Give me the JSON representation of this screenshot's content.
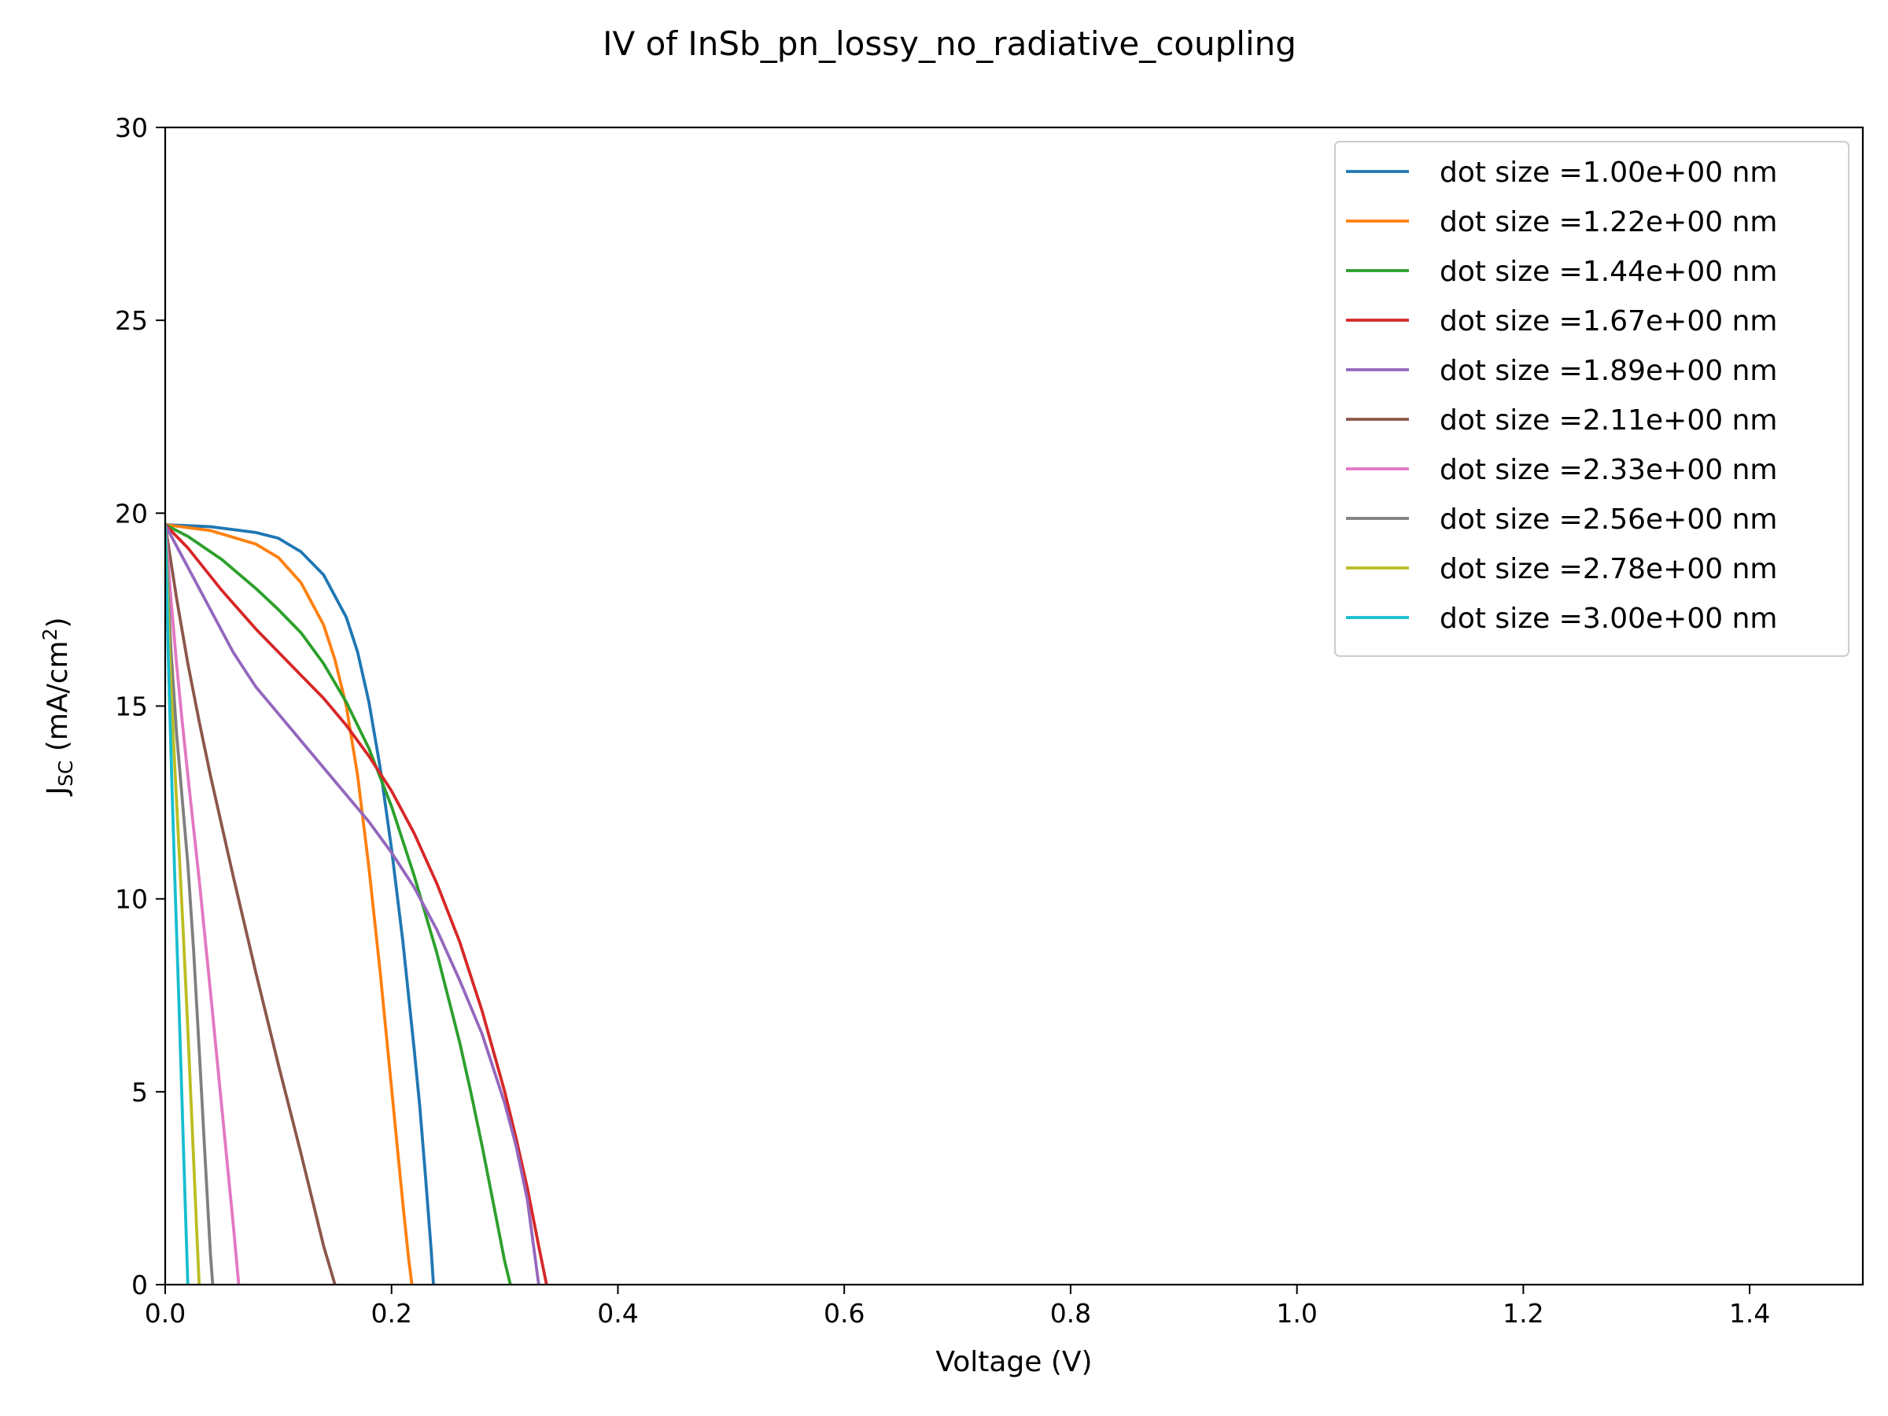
{
  "chart_data": {
    "type": "line",
    "title": "IV of InSb_pn_lossy_no_radiative_coupling",
    "xlabel": "Voltage (V)",
    "ylabel": {
      "main": "J",
      "sub": "SC",
      "unit_pre": " (mA/cm",
      "unit_sup": "2",
      "unit_post": ")"
    },
    "xlim": [
      0,
      1.5
    ],
    "ylim": [
      0,
      30
    ],
    "xticks": [
      0.0,
      0.2,
      0.4,
      0.6,
      0.8,
      1.0,
      1.2,
      1.4
    ],
    "xtick_labels": [
      "0.0",
      "0.2",
      "0.4",
      "0.6",
      "0.8",
      "1.0",
      "1.2",
      "1.4"
    ],
    "yticks": [
      0,
      5,
      10,
      15,
      20,
      25,
      30
    ],
    "ytick_labels": [
      "0",
      "5",
      "10",
      "15",
      "20",
      "25",
      "30"
    ],
    "grid": false,
    "legend_position": "top-right",
    "series": [
      {
        "name": "dot size =1.00e+00 nm",
        "color": "#1f77b4",
        "x": [
          0,
          0.04,
          0.08,
          0.1,
          0.12,
          0.14,
          0.16,
          0.17,
          0.18,
          0.19,
          0.2,
          0.21,
          0.22,
          0.225,
          0.23,
          0.235,
          0.237
        ],
        "y": [
          19.7,
          19.65,
          19.5,
          19.35,
          19.0,
          18.4,
          17.3,
          16.4,
          15.1,
          13.4,
          11.3,
          8.9,
          6.1,
          4.6,
          2.8,
          0.9,
          0
        ]
      },
      {
        "name": "dot size =1.22e+00 nm",
        "color": "#ff7f0e",
        "x": [
          0,
          0.04,
          0.08,
          0.1,
          0.12,
          0.14,
          0.15,
          0.16,
          0.17,
          0.18,
          0.19,
          0.2,
          0.205,
          0.21,
          0.215,
          0.218
        ],
        "y": [
          19.7,
          19.55,
          19.2,
          18.85,
          18.2,
          17.1,
          16.2,
          15.0,
          13.2,
          10.8,
          8.1,
          5.1,
          3.6,
          2.1,
          0.7,
          0
        ]
      },
      {
        "name": "dot size =1.44e+00 nm",
        "color": "#2ca02c",
        "x": [
          0,
          0.02,
          0.05,
          0.08,
          0.1,
          0.12,
          0.14,
          0.16,
          0.18,
          0.2,
          0.22,
          0.24,
          0.26,
          0.27,
          0.28,
          0.29,
          0.3,
          0.305
        ],
        "y": [
          19.7,
          19.4,
          18.8,
          18.05,
          17.5,
          16.9,
          16.1,
          15.1,
          13.9,
          12.4,
          10.6,
          8.6,
          6.3,
          5.0,
          3.6,
          2.1,
          0.6,
          0
        ]
      },
      {
        "name": "dot size =1.67e+00 nm",
        "color": "#d62728",
        "x": [
          0,
          0.02,
          0.05,
          0.08,
          0.1,
          0.12,
          0.14,
          0.16,
          0.18,
          0.2,
          0.22,
          0.24,
          0.26,
          0.28,
          0.3,
          0.31,
          0.32,
          0.33,
          0.337
        ],
        "y": [
          19.7,
          19.1,
          18.0,
          17.0,
          16.4,
          15.8,
          15.2,
          14.5,
          13.7,
          12.8,
          11.7,
          10.4,
          8.9,
          7.1,
          5.0,
          3.8,
          2.5,
          1.0,
          0
        ]
      },
      {
        "name": "dot size =1.89e+00 nm",
        "color": "#9467bd",
        "x": [
          0,
          0.02,
          0.04,
          0.06,
          0.08,
          0.1,
          0.12,
          0.14,
          0.16,
          0.18,
          0.2,
          0.22,
          0.24,
          0.26,
          0.28,
          0.3,
          0.31,
          0.32,
          0.33
        ],
        "y": [
          19.7,
          18.6,
          17.5,
          16.4,
          15.5,
          14.8,
          14.1,
          13.4,
          12.7,
          12.0,
          11.2,
          10.3,
          9.2,
          7.9,
          6.5,
          4.7,
          3.6,
          2.2,
          0
        ]
      },
      {
        "name": "dot size =2.11e+00 nm",
        "color": "#8c564b",
        "x": [
          0,
          0.01,
          0.02,
          0.03,
          0.04,
          0.06,
          0.08,
          0.1,
          0.12,
          0.14,
          0.15
        ],
        "y": [
          19.7,
          17.8,
          16.1,
          14.6,
          13.2,
          10.6,
          8.1,
          5.7,
          3.4,
          1.0,
          0
        ]
      },
      {
        "name": "dot size =2.33e+00 nm",
        "color": "#e377c2",
        "x": [
          0,
          0.005,
          0.01,
          0.015,
          0.02,
          0.03,
          0.04,
          0.05,
          0.06,
          0.065
        ],
        "y": [
          19.7,
          17.8,
          16.1,
          14.6,
          13.2,
          10.5,
          7.6,
          4.6,
          1.6,
          0
        ]
      },
      {
        "name": "dot size =2.56e+00 nm",
        "color": "#7f7f7f",
        "x": [
          0,
          0.005,
          0.01,
          0.015,
          0.02,
          0.025,
          0.03,
          0.035,
          0.04,
          0.042
        ],
        "y": [
          19.7,
          16.5,
          14.3,
          12.6,
          10.9,
          8.7,
          6.1,
          3.4,
          0.8,
          0
        ]
      },
      {
        "name": "dot size =2.78e+00 nm",
        "color": "#bcbd22",
        "x": [
          0,
          0.004,
          0.008,
          0.012,
          0.016,
          0.02,
          0.024,
          0.028,
          0.03
        ],
        "y": [
          19.7,
          16.2,
          13.7,
          11.4,
          9.1,
          6.6,
          4.0,
          1.3,
          0
        ]
      },
      {
        "name": "dot size =3.00e+00 nm",
        "color": "#17becf",
        "x": [
          0,
          0.003,
          0.006,
          0.009,
          0.012,
          0.015,
          0.018,
          0.02
        ],
        "y": [
          19.7,
          16.0,
          12.9,
          10.1,
          7.4,
          4.6,
          1.8,
          0
        ]
      }
    ]
  }
}
